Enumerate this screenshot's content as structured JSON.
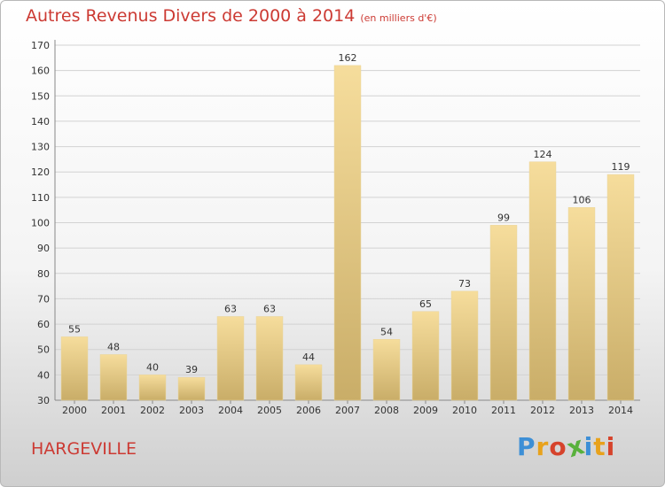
{
  "title": "Autres Revenus Divers de 2000 à 2014",
  "title_unit": "(en milliers d'€)",
  "commune": "HARGEVILLE",
  "logo": {
    "text": "Proxiti",
    "letter_colors": [
      "#3d8fd6",
      "#e8a21c",
      "#d6432c",
      "#58b13c",
      "#3d8fd6",
      "#e8a21c",
      "#d6432c"
    ]
  },
  "colors": {
    "bar_light": "#f6dd9c",
    "bar_dark": "#c9ad68",
    "title": "#cc3a33"
  },
  "chart_data": {
    "type": "bar",
    "title": "Autres Revenus Divers de 2000 à 2014",
    "subtitle": "(en milliers d'€)",
    "categories": [
      "2000",
      "2001",
      "2002",
      "2003",
      "2004",
      "2005",
      "2006",
      "2007",
      "2008",
      "2009",
      "2010",
      "2011",
      "2012",
      "2013",
      "2014"
    ],
    "values": [
      55,
      48,
      40,
      39,
      63,
      63,
      44,
      162,
      54,
      65,
      73,
      99,
      124,
      106,
      119
    ],
    "xlabel": "",
    "ylabel": "",
    "ylim": [
      30,
      170
    ],
    "yticks": [
      30,
      40,
      50,
      60,
      70,
      80,
      90,
      100,
      110,
      120,
      130,
      140,
      150,
      160,
      170
    ],
    "grid": true,
    "legend": "none"
  }
}
